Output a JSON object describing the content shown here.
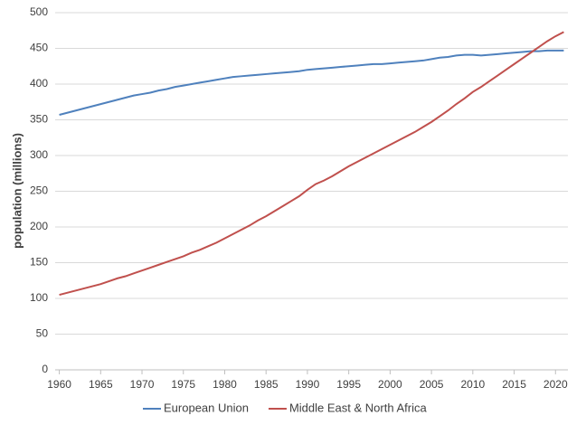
{
  "chart_data": {
    "type": "line",
    "y_label": "population (millions)",
    "x": [
      1960,
      1961,
      1962,
      1963,
      1964,
      1965,
      1966,
      1967,
      1968,
      1969,
      1970,
      1971,
      1972,
      1973,
      1974,
      1975,
      1976,
      1977,
      1978,
      1979,
      1980,
      1981,
      1982,
      1983,
      1984,
      1985,
      1986,
      1987,
      1988,
      1989,
      1990,
      1991,
      1992,
      1993,
      1994,
      1995,
      1996,
      1997,
      1998,
      1999,
      2000,
      2001,
      2002,
      2003,
      2004,
      2005,
      2006,
      2007,
      2008,
      2009,
      2010,
      2011,
      2012,
      2013,
      2014,
      2015,
      2016,
      2017,
      2018,
      2019,
      2020,
      2021
    ],
    "series": [
      {
        "name": "European Union",
        "color": "#4f81bd",
        "values": [
          357,
          360,
          363,
          366,
          369,
          372,
          375,
          378,
          381,
          384,
          386,
          388,
          391,
          393,
          396,
          398,
          400,
          402,
          404,
          406,
          408,
          410,
          411,
          412,
          413,
          414,
          415,
          416,
          417,
          418,
          420,
          421,
          422,
          423,
          424,
          425,
          426,
          427,
          428,
          428,
          429,
          430,
          431,
          432,
          433,
          435,
          437,
          438,
          440,
          441,
          441,
          440,
          441,
          442,
          443,
          444,
          445,
          446,
          446,
          447,
          447,
          447
        ]
      },
      {
        "name": "Middle East & North Africa",
        "color": "#c0504d",
        "values": [
          105,
          108,
          111,
          114,
          117,
          120,
          124,
          128,
          131,
          135,
          139,
          143,
          147,
          151,
          155,
          159,
          164,
          168,
          173,
          178,
          184,
          190,
          196,
          202,
          209,
          215,
          222,
          229,
          236,
          243,
          252,
          260,
          265,
          271,
          278,
          285,
          291,
          297,
          303,
          309,
          315,
          321,
          327,
          333,
          340,
          347,
          355,
          363,
          372,
          380,
          389,
          396,
          404,
          412,
          420,
          428,
          436,
          444,
          452,
          460,
          467,
          473
        ]
      }
    ],
    "xlim": [
      1959.5,
      2021.5
    ],
    "xticks": [
      1960,
      1965,
      1970,
      1975,
      1980,
      1985,
      1990,
      1995,
      2000,
      2005,
      2010,
      2015,
      2020
    ],
    "ylim": [
      0,
      500
    ],
    "yticks": [
      0,
      50,
      100,
      150,
      200,
      250,
      300,
      350,
      400,
      450,
      500
    ],
    "grid": true,
    "legend": "bottom"
  }
}
